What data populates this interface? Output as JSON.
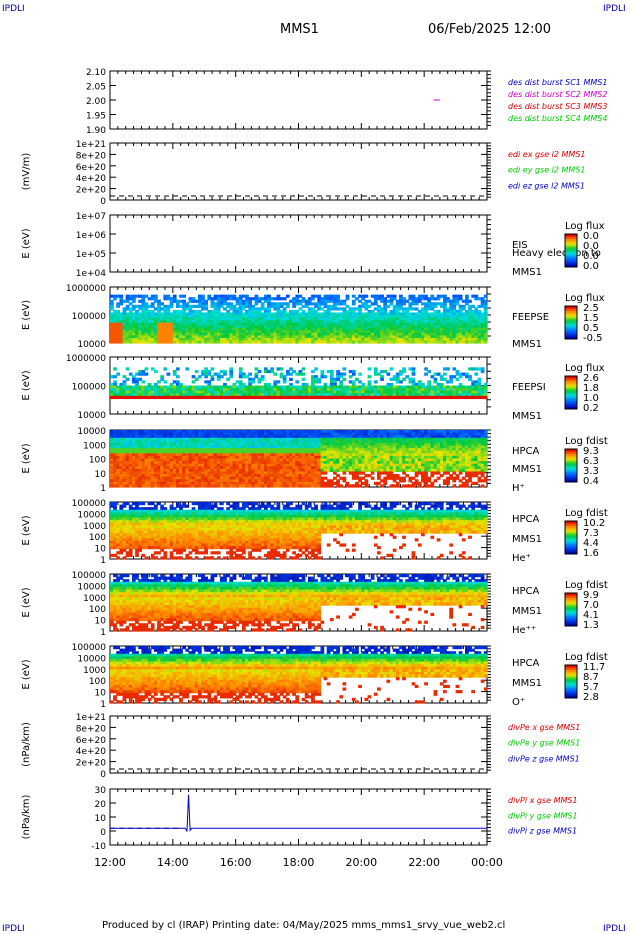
{
  "corner_left": "IPDLI",
  "corner_right": "IPDLI",
  "corner_bottom_left": "IPDLI",
  "corner_bottom_right": "IPDLI",
  "header": {
    "mission": "MMS1",
    "datetime": "06/Feb/2025 12:00"
  },
  "footer": "Produced by cl (IRAP)   Printing date: 04/May/2025   mms_mms1_srvy_vue_web2.cl",
  "colors": {
    "red": "#dd0000",
    "green": "#00cc00",
    "blue": "#0000cc",
    "magenta": "#cc00cc"
  },
  "chart_data": [
    {
      "type": "line",
      "panel": "des-dist-burst",
      "yticks": [
        "2.10",
        "2.05",
        "2.00",
        "1.95",
        "1.90"
      ],
      "ylim": [
        1.9,
        2.1
      ],
      "legend": [
        {
          "text": "des dist burst SC1 MMS1",
          "color": "#0000cc"
        },
        {
          "text": "des dist burst SC2 MMS2",
          "color": "#cc00cc"
        },
        {
          "text": "des dist burst SC3 MMS3",
          "color": "#dd0000"
        },
        {
          "text": "des dist burst SC4 MMS4",
          "color": "#00cc00"
        }
      ],
      "series": [
        {
          "name": "des dist burst SC2 MMS2",
          "x": [
            22.3,
            22.5
          ],
          "y": [
            2.0,
            2.0
          ]
        }
      ]
    },
    {
      "type": "line",
      "panel": "edi-e",
      "ylabel": "(mV/m)",
      "yticks": [
        "1e+21",
        "8e+20",
        "6e+20",
        "4e+20",
        "2e+20",
        "0"
      ],
      "legend": [
        {
          "text": "edi ex gse l2 MMS1",
          "color": "#dd0000"
        },
        {
          "text": "edi ey gse l2 MMS1",
          "color": "#00cc00"
        },
        {
          "text": "edi ez gse l2 MMS1",
          "color": "#0000cc"
        }
      ]
    },
    {
      "type": "heatmap",
      "panel": "eis",
      "ylabel": "E (eV)",
      "yticks": [
        "1e+07",
        "1e+06",
        "1e+05",
        "1e+04"
      ],
      "labels": [
        "EIS",
        "Heavy electron to",
        "MMS1"
      ],
      "colorbar": {
        "title": "Log flux",
        "ticks": [
          "0.0",
          "0.0",
          "0.0",
          "0.0"
        ]
      }
    },
    {
      "type": "heatmap",
      "panel": "feepse",
      "ylabel": "E (eV)",
      "yticks": [
        "1000000",
        "100000",
        "10000"
      ],
      "labels": [
        "FEEPSE",
        "MMS1"
      ],
      "colorbar": {
        "title": "Log flux",
        "ticks": [
          "2.5",
          "1.5",
          "0.5",
          "-0.5"
        ]
      }
    },
    {
      "type": "heatmap",
      "panel": "feepsi",
      "ylabel": "E (eV)",
      "yticks": [
        "1000000",
        "100000",
        "10000"
      ],
      "labels": [
        "FEEPSI",
        "MMS1"
      ],
      "colorbar": {
        "title": "Log flux",
        "ticks": [
          "2.6",
          "1.8",
          "1.0",
          "0.2"
        ]
      }
    },
    {
      "type": "heatmap",
      "panel": "hpca-h",
      "ylabel": "E (eV)",
      "yticks": [
        "10000",
        "1000",
        "100",
        "10",
        "1"
      ],
      "labels": [
        "HPCA",
        "MMS1",
        "H⁺"
      ],
      "colorbar": {
        "title": "Log fdist",
        "ticks": [
          "9.3",
          "6.3",
          "3.3",
          "0.4"
        ]
      }
    },
    {
      "type": "heatmap",
      "panel": "hpca-he",
      "ylabel": "E (eV)",
      "yticks": [
        "100000",
        "10000",
        "1000",
        "100",
        "10",
        "1"
      ],
      "labels": [
        "HPCA",
        "MMS1",
        "He⁺"
      ],
      "colorbar": {
        "title": "Log fdist",
        "ticks": [
          "10.2",
          "7.3",
          "4.4",
          "1.6"
        ]
      }
    },
    {
      "type": "heatmap",
      "panel": "hpca-hepp",
      "ylabel": "E (eV)",
      "yticks": [
        "100000",
        "10000",
        "1000",
        "100",
        "10",
        "1"
      ],
      "labels": [
        "HPCA",
        "MMS1",
        "He⁺⁺"
      ],
      "colorbar": {
        "title": "Log fdist",
        "ticks": [
          "9.9",
          "7.0",
          "4.1",
          "1.3"
        ]
      }
    },
    {
      "type": "heatmap",
      "panel": "hpca-o",
      "ylabel": "E (eV)",
      "yticks": [
        "100000",
        "10000",
        "1000",
        "100",
        "10",
        "1"
      ],
      "labels": [
        "HPCA",
        "MMS1",
        "O⁺"
      ],
      "colorbar": {
        "title": "Log fdist",
        "ticks": [
          "11.7",
          "8.7",
          "5.7",
          "2.8"
        ]
      }
    },
    {
      "type": "line",
      "panel": "divpe",
      "ylabel": "(nPa/km)",
      "yticks": [
        "1e+21",
        "8e+20",
        "6e+20",
        "4e+20",
        "2e+20",
        "0"
      ],
      "legend": [
        {
          "text": "divPe x gse MMS1",
          "color": "#dd0000"
        },
        {
          "text": "divPe y gse MMS1",
          "color": "#00cc00"
        },
        {
          "text": "divPe z gse MMS1",
          "color": "#0000cc"
        }
      ]
    },
    {
      "type": "line",
      "panel": "divpi",
      "ylabel": "(nPa/km)",
      "yticks": [
        "30",
        "20",
        "10",
        "0",
        "-10"
      ],
      "ylim": [
        -15,
        35
      ],
      "legend": [
        {
          "text": "divPi x gse MMS1",
          "color": "#dd0000"
        },
        {
          "text": "divPi y gse MMS1",
          "color": "#00cc00"
        },
        {
          "text": "divPi z gse MMS1",
          "color": "#0000cc"
        }
      ],
      "series": [
        {
          "name": "divPi z gse MMS1",
          "x": [
            12.0,
            14.4,
            14.45,
            14.5,
            14.55,
            14.6,
            24.0
          ],
          "y": [
            0,
            0,
            -3,
            30,
            -2,
            0,
            0
          ]
        }
      ]
    }
  ],
  "xaxis": {
    "ticks": [
      "12:00",
      "14:00",
      "16:00",
      "18:00",
      "20:00",
      "22:00",
      "00:00"
    ],
    "xlim": [
      12,
      24
    ]
  }
}
